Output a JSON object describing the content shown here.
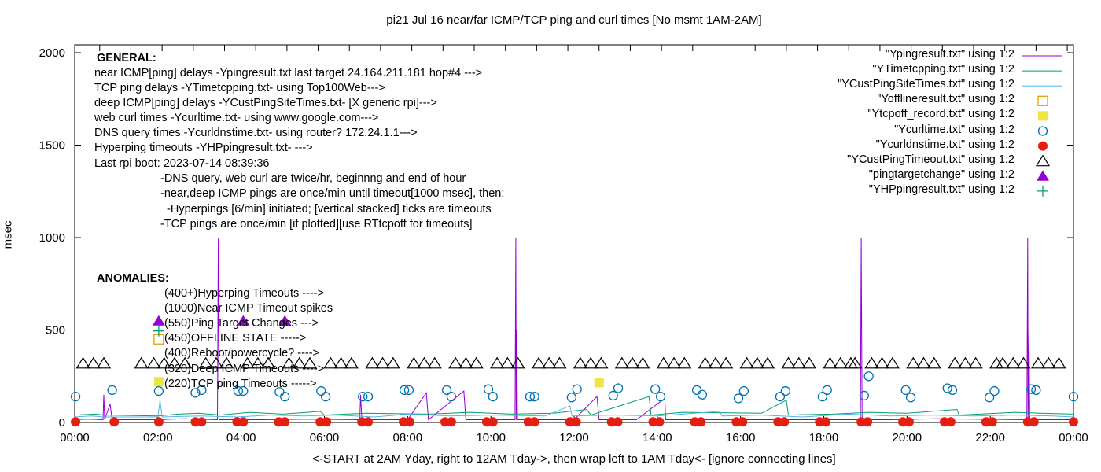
{
  "chart_data": {
    "type": "line",
    "title": "pi21 Jul 16  near/far ICMP/TCP ping and curl times [No msmt 1AM-2AM]",
    "xlabel": "<-START at 2AM Yday, right to 12AM Tday->, then wrap left to 1AM Tday<- [ignore connecting lines]",
    "ylabel": "msec",
    "xlim_hours": [
      0,
      24
    ],
    "ylim": [
      0,
      2050
    ],
    "xticks": [
      "00:00",
      "02:00",
      "04:00",
      "06:00",
      "08:00",
      "10:00",
      "12:00",
      "14:00",
      "16:00",
      "18:00",
      "20:00",
      "22:00",
      "00:00"
    ],
    "yticks": [
      0,
      500,
      1000,
      1500,
      2000
    ],
    "grid": false,
    "legend_placement": "top-right",
    "series": [
      {
        "name": "\"Ypingresult.txt\" using 1:2",
        "style": "line",
        "color": "#9400d3",
        "points": [
          [
            0,
            15
          ],
          [
            0.3,
            18
          ],
          [
            0.68,
            15
          ],
          [
            0.7,
            150
          ],
          [
            0.72,
            15
          ],
          [
            0.85,
            100
          ],
          [
            0.9,
            15
          ],
          [
            2.0,
            15
          ],
          [
            2.6,
            20
          ],
          [
            3.43,
            15
          ],
          [
            3.45,
            1000
          ],
          [
            3.47,
            15
          ],
          [
            4.5,
            15
          ],
          [
            5.5,
            18
          ],
          [
            6.85,
            15
          ],
          [
            6.87,
            150
          ],
          [
            6.9,
            15
          ],
          [
            8.0,
            15
          ],
          [
            8.45,
            160
          ],
          [
            8.5,
            15
          ],
          [
            9.35,
            170
          ],
          [
            9.4,
            15
          ],
          [
            10.58,
            15
          ],
          [
            10.6,
            1000
          ],
          [
            10.61,
            15
          ],
          [
            10.62,
            500
          ],
          [
            10.64,
            15
          ],
          [
            12.0,
            15
          ],
          [
            12.55,
            140
          ],
          [
            12.6,
            15
          ],
          [
            13.5,
            15
          ],
          [
            14.18,
            130
          ],
          [
            14.2,
            15
          ],
          [
            15.5,
            15
          ],
          [
            17.0,
            15
          ],
          [
            18.88,
            15
          ],
          [
            18.9,
            1000
          ],
          [
            18.92,
            15
          ],
          [
            19.6,
            15
          ],
          [
            20.7,
            20
          ],
          [
            22.88,
            15
          ],
          [
            22.9,
            1000
          ],
          [
            22.91,
            15
          ],
          [
            22.93,
            500
          ],
          [
            22.95,
            15
          ],
          [
            24,
            15
          ]
        ]
      },
      {
        "name": "\"YTimetcpping.txt\" using 1:2",
        "style": "line",
        "color": "#009e73",
        "points": [
          [
            0,
            40
          ],
          [
            0.5,
            45
          ],
          [
            0.7,
            40
          ],
          [
            2.0,
            35
          ],
          [
            2.5,
            45
          ],
          [
            3.0,
            50
          ],
          [
            3.5,
            40
          ],
          [
            4.2,
            55
          ],
          [
            5.0,
            45
          ],
          [
            5.9,
            60
          ],
          [
            6.0,
            40
          ],
          [
            7.0,
            50
          ],
          [
            8.5,
            45
          ],
          [
            9.5,
            55
          ],
          [
            10.5,
            45
          ],
          [
            11.5,
            50
          ],
          [
            12.3,
            70
          ],
          [
            12.4,
            40
          ],
          [
            13.8,
            140
          ],
          [
            13.85,
            40
          ],
          [
            14.6,
            55
          ],
          [
            16.5,
            50
          ],
          [
            17.1,
            120
          ],
          [
            17.15,
            40
          ],
          [
            18.2,
            45
          ],
          [
            19.1,
            55
          ],
          [
            20.0,
            50
          ],
          [
            21.2,
            70
          ],
          [
            21.25,
            40
          ],
          [
            22.6,
            55
          ],
          [
            23.2,
            50
          ],
          [
            24,
            45
          ]
        ]
      },
      {
        "name": "\"YCustPingSiteTimes.txt\" using 1:2",
        "style": "line",
        "color": "#56b4e9",
        "points": [
          [
            0,
            30
          ],
          [
            0.4,
            35
          ],
          [
            0.7,
            30
          ],
          [
            2.0,
            30
          ],
          [
            2.05,
            120
          ],
          [
            2.1,
            30
          ],
          [
            3.0,
            35
          ],
          [
            3.9,
            30
          ],
          [
            4.7,
            40
          ],
          [
            5.5,
            35
          ],
          [
            6.3,
            40
          ],
          [
            7.2,
            30
          ],
          [
            8.0,
            45
          ],
          [
            9.0,
            35
          ],
          [
            10.0,
            40
          ],
          [
            11.3,
            35
          ],
          [
            11.9,
            90
          ],
          [
            11.95,
            35
          ],
          [
            13.0,
            40
          ],
          [
            14.0,
            35
          ],
          [
            15.5,
            60
          ],
          [
            15.55,
            35
          ],
          [
            16.5,
            40
          ],
          [
            17.5,
            30
          ],
          [
            18.6,
            45
          ],
          [
            19.6,
            35
          ],
          [
            20.6,
            40
          ],
          [
            21.6,
            35
          ],
          [
            22.6,
            40
          ],
          [
            23.5,
            35
          ],
          [
            24,
            30
          ]
        ]
      },
      {
        "name": "\"Yofflineresult.txt\" using 1:2",
        "style": "open-square",
        "color": "#e69f00",
        "points": [
          [
            2.02,
            450
          ]
        ]
      },
      {
        "name": "\"Ytcpoff_record.txt\" using 1:2",
        "style": "filled-square",
        "color": "#f0e442",
        "points": [
          [
            2.02,
            220
          ],
          [
            12.6,
            215
          ]
        ]
      },
      {
        "name": "\"Ycurltime.txt\" using 1:2",
        "style": "open-circle",
        "color": "#0072b2",
        "points": [
          [
            0.02,
            140
          ],
          [
            0.9,
            175
          ],
          [
            2.02,
            170
          ],
          [
            2.9,
            160
          ],
          [
            3.05,
            175
          ],
          [
            3.93,
            170
          ],
          [
            4.05,
            170
          ],
          [
            4.92,
            165
          ],
          [
            5.05,
            140
          ],
          [
            5.92,
            170
          ],
          [
            6.03,
            140
          ],
          [
            6.92,
            140
          ],
          [
            7.05,
            140
          ],
          [
            7.92,
            175
          ],
          [
            8.03,
            175
          ],
          [
            8.94,
            175
          ],
          [
            9.05,
            140
          ],
          [
            9.94,
            180
          ],
          [
            10.05,
            140
          ],
          [
            10.94,
            140
          ],
          [
            11.05,
            140
          ],
          [
            11.94,
            135
          ],
          [
            12.07,
            180
          ],
          [
            12.94,
            145
          ],
          [
            13.06,
            185
          ],
          [
            13.95,
            180
          ],
          [
            14.08,
            140
          ],
          [
            14.95,
            175
          ],
          [
            15.08,
            150
          ],
          [
            15.95,
            130
          ],
          [
            16.08,
            170
          ],
          [
            16.95,
            140
          ],
          [
            17.08,
            170
          ],
          [
            17.97,
            140
          ],
          [
            18.08,
            175
          ],
          [
            18.97,
            145
          ],
          [
            19.08,
            250
          ],
          [
            19.97,
            175
          ],
          [
            20.09,
            135
          ],
          [
            20.97,
            185
          ],
          [
            21.09,
            175
          ],
          [
            21.98,
            135
          ],
          [
            22.1,
            170
          ],
          [
            22.98,
            180
          ],
          [
            23.1,
            175
          ],
          [
            24.0,
            140
          ]
        ]
      },
      {
        "name": "\"Ycurldnstime.txt\" using 1:2",
        "style": "filled-circle",
        "color": "#e51e10",
        "points": [
          [
            0.02,
            3
          ],
          [
            0.95,
            3
          ],
          [
            2.02,
            3
          ],
          [
            2.9,
            3
          ],
          [
            3.05,
            3
          ],
          [
            3.9,
            3
          ],
          [
            4.05,
            3
          ],
          [
            4.9,
            3
          ],
          [
            5.05,
            3
          ],
          [
            5.9,
            3
          ],
          [
            6.05,
            3
          ],
          [
            6.9,
            3
          ],
          [
            7.05,
            3
          ],
          [
            7.9,
            3
          ],
          [
            8.05,
            3
          ],
          [
            8.9,
            3
          ],
          [
            9.05,
            3
          ],
          [
            9.9,
            3
          ],
          [
            10.05,
            3
          ],
          [
            10.9,
            3
          ],
          [
            11.05,
            3
          ],
          [
            11.9,
            3
          ],
          [
            12.05,
            3
          ],
          [
            12.9,
            3
          ],
          [
            13.05,
            3
          ],
          [
            13.9,
            3
          ],
          [
            14.05,
            3
          ],
          [
            14.9,
            3
          ],
          [
            15.05,
            3
          ],
          [
            15.9,
            3
          ],
          [
            16.05,
            3
          ],
          [
            16.9,
            3
          ],
          [
            17.05,
            3
          ],
          [
            17.9,
            3
          ],
          [
            18.05,
            3
          ],
          [
            18.9,
            3
          ],
          [
            19.05,
            3
          ],
          [
            19.9,
            3
          ],
          [
            20.05,
            3
          ],
          [
            20.9,
            3
          ],
          [
            21.05,
            3
          ],
          [
            21.9,
            3
          ],
          [
            22.05,
            3
          ],
          [
            22.9,
            3
          ],
          [
            23.05,
            3
          ],
          [
            24.0,
            3
          ]
        ]
      },
      {
        "name": "\"YCustPingTimeout.txt\" using 1:2",
        "style": "open-triangle",
        "color": "#000000",
        "timeout_value": 320,
        "hours": [
          0.2,
          0.45,
          0.7,
          1.6,
          1.9,
          2.15,
          2.4,
          2.65,
          3.15,
          3.4,
          3.65,
          4.15,
          4.4,
          4.65,
          5.15,
          5.4,
          5.65,
          6.15,
          6.4,
          6.65,
          7.15,
          7.4,
          7.65,
          8.15,
          8.4,
          8.65,
          9.15,
          9.4,
          9.65,
          10.15,
          10.4,
          10.65,
          11.15,
          11.4,
          11.65,
          12.15,
          12.4,
          12.65,
          13.15,
          13.4,
          13.65,
          14.15,
          14.4,
          14.65,
          15.15,
          15.4,
          15.65,
          16.15,
          16.4,
          16.65,
          17.15,
          17.4,
          17.65,
          18.15,
          18.4,
          18.65,
          18.75,
          19.15,
          19.4,
          19.65,
          20.15,
          20.4,
          20.65,
          21.15,
          21.4,
          21.65,
          22.15,
          22.3,
          22.55,
          22.8,
          23.15,
          23.4,
          23.65
        ]
      },
      {
        "name": "\"pingtargetchange\" using 1:2",
        "style": "filled-triangle",
        "color": "#9400d3",
        "points": [
          [
            2.02,
            550
          ],
          [
            4.05,
            550
          ],
          [
            5.05,
            550
          ]
        ]
      },
      {
        "name": "\"YHPpingresult.txt\" using 1:2",
        "style": "plus",
        "color": "#009e73",
        "points": [
          [
            2.02,
            495
          ]
        ]
      }
    ],
    "annotations": {
      "general_heading": "GENERAL:",
      "general_lines": [
        "near ICMP[ping] delays -Ypingresult.txt last target 24.164.211.181 hop#4 --->",
        "TCP ping delays -YTimetcpping.txt- using Top100Web--->",
        "deep ICMP[ping] delays -YCustPingSiteTimes.txt- [X generic rpi]--->",
        "web curl times -Ycurltime.txt- using www.google.com--->",
        "DNS query times -Ycurldnstime.txt- using router? 172.24.1.1--->",
        "Hyperping timeouts -YHPpingresult.txt- --->",
        "Last rpi boot: 2023-07-14 08:39:36"
      ],
      "notes": [
        "-DNS query, web curl are twice/hr, beginnng and end of hour",
        "-near,deep ICMP pings are once/min until timeout[1000 msec], then:",
        "  -Hyperpings [6/min] initiated; [vertical stacked] ticks are timeouts",
        "-TCP pings are once/min [if plotted][use RTtcpoff for timeouts]"
      ],
      "anomalies_heading": "ANOMALIES:",
      "anomalies_lines": [
        "(400+)Hyperping Timeouts ---->",
        "(1000)Near ICMP Timeout spikes",
        "(550)Ping Target Changes --->",
        "(450)OFFLINE STATE ----->",
        "(400)Reboot/powercycle? ---->",
        "(320)Deep ICMP Timeouts ---->",
        "(220)TCP ping Timeouts ----->"
      ]
    }
  }
}
